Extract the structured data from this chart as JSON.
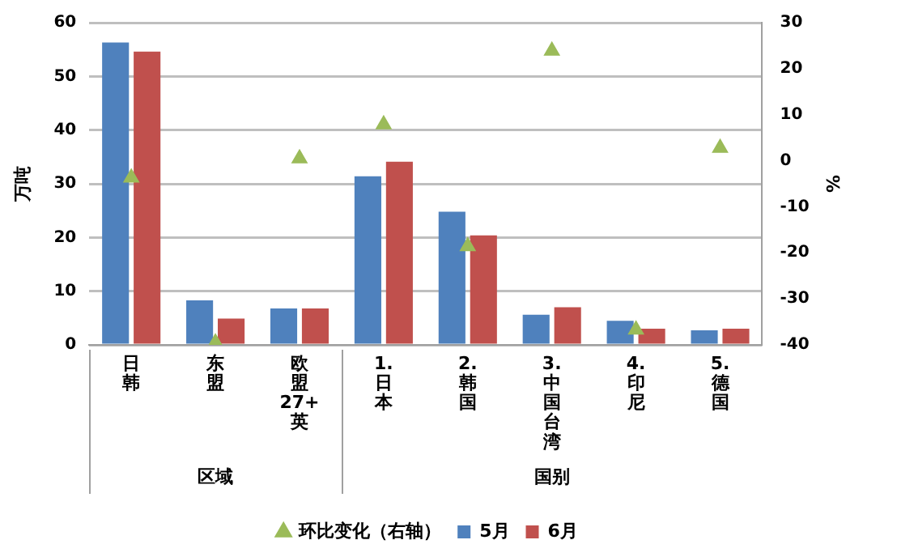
{
  "chart_data": {
    "type": "bar",
    "ylabel": "万吨",
    "y2label": "%",
    "categories": [
      "日韩",
      "东盟",
      "欧盟27+英",
      "1.日本",
      "2.韩国",
      "3.中国台湾",
      "4.印尼",
      "5.德国"
    ],
    "series": [
      {
        "name": "5月",
        "color": "#4f81bd",
        "values": [
          56.3,
          8.3,
          6.8,
          31.4,
          24.8,
          5.6,
          4.5,
          2.7
        ]
      },
      {
        "name": "6月",
        "color": "#c0504d",
        "values": [
          54.6,
          4.9,
          6.8,
          34.1,
          20.4,
          7.0,
          3.0,
          3.0
        ]
      },
      {
        "name": "环比变化（右轴）",
        "type": "scatter",
        "axis": "y2",
        "color": "#9bbb59",
        "values": [
          -3.7,
          -39.5,
          0.5,
          7.9,
          -18.6,
          23.9,
          -36.7,
          2.8
        ]
      }
    ],
    "ylim": [
      0,
      60
    ],
    "yticks": [
      0,
      10,
      20,
      30,
      40,
      50,
      60
    ],
    "y2lim": [
      -40,
      30
    ],
    "y2ticks": [
      -40,
      -30,
      -20,
      -10,
      0,
      10,
      20,
      30
    ],
    "grid": "y",
    "legend": "bottom",
    "marker": "triangle",
    "annotations": [
      "区域",
      "国别"
    ]
  }
}
